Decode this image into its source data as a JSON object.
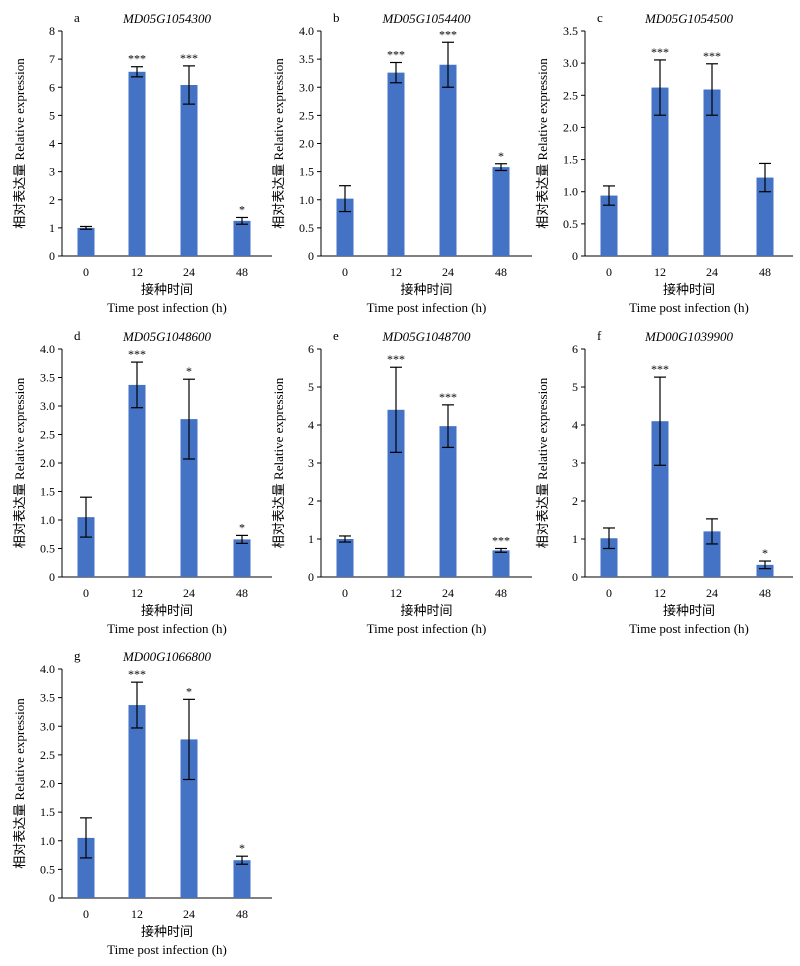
{
  "chart_data": [
    {
      "type": "bar",
      "panel_label": "a",
      "title": "MD05G1054300",
      "categories": [
        "0",
        "12",
        "24",
        "48"
      ],
      "values": [
        1.0,
        6.55,
        6.08,
        1.25
      ],
      "errors": [
        0.05,
        0.18,
        0.68,
        0.12
      ],
      "significance": [
        "",
        "***",
        "***",
        "*"
      ],
      "ylim": [
        0,
        8
      ],
      "yticks": [
        "0",
        "1",
        "2",
        "3",
        "4",
        "5",
        "6",
        "7",
        "8"
      ],
      "ylabel": "相对表达量 Relative expression",
      "xlabel_cn": "接种时间",
      "xlabel": "Time post infection (h)",
      "bar_color": "#4472c4"
    },
    {
      "type": "bar",
      "panel_label": "b",
      "title": "MD05G1054400",
      "categories": [
        "0",
        "12",
        "24",
        "48"
      ],
      "values": [
        1.02,
        3.26,
        3.4,
        1.58
      ],
      "errors": [
        0.23,
        0.18,
        0.4,
        0.06
      ],
      "significance": [
        "",
        "***",
        "***",
        "*"
      ],
      "ylim": [
        0,
        4.0
      ],
      "yticks": [
        "0",
        "0.5",
        "1.0",
        "1.5",
        "2.0",
        "2.5",
        "3.0",
        "3.5",
        "4.0"
      ],
      "ylabel": "相对表达量 Relative expression",
      "xlabel_cn": "接种时间",
      "xlabel": "Time post infection (h)",
      "bar_color": "#4472c4"
    },
    {
      "type": "bar",
      "panel_label": "c",
      "title": "MD05G1054500",
      "categories": [
        "0",
        "12",
        "24",
        "48"
      ],
      "values": [
        0.94,
        2.62,
        2.59,
        1.22
      ],
      "errors": [
        0.15,
        0.43,
        0.4,
        0.22
      ],
      "significance": [
        "",
        "***",
        "***",
        ""
      ],
      "ylim": [
        0,
        3.5
      ],
      "yticks": [
        "0",
        "0.5",
        "1.0",
        "1.5",
        "2.0",
        "2.5",
        "3.0",
        "3.5"
      ],
      "ylabel": "相对表达量 Relative expression",
      "xlabel_cn": "接种时间",
      "xlabel": "Time post infection (h)",
      "bar_color": "#4472c4"
    },
    {
      "type": "bar",
      "panel_label": "d",
      "title": "MD05G1048600",
      "categories": [
        "0",
        "12",
        "24",
        "48"
      ],
      "values": [
        1.05,
        3.37,
        2.77,
        0.66
      ],
      "errors": [
        0.35,
        0.4,
        0.7,
        0.07
      ],
      "significance": [
        "",
        "***",
        "*",
        "*"
      ],
      "ylim": [
        0,
        4.0
      ],
      "yticks": [
        "0",
        "0.5",
        "1.0",
        "1.5",
        "2.0",
        "2.5",
        "3.0",
        "3.5",
        "4.0"
      ],
      "ylabel": "相对表达量 Relative expression",
      "xlabel_cn": "接种时间",
      "xlabel": "Time post infection (h)",
      "bar_color": "#4472c4"
    },
    {
      "type": "bar",
      "panel_label": "e",
      "title": "MD05G1048700",
      "categories": [
        "0",
        "12",
        "24",
        "48"
      ],
      "values": [
        1.0,
        4.4,
        3.97,
        0.7
      ],
      "errors": [
        0.08,
        1.12,
        0.56,
        0.05
      ],
      "significance": [
        "",
        "***",
        "***",
        "***"
      ],
      "ylim": [
        0,
        6
      ],
      "yticks": [
        "0",
        "1",
        "2",
        "3",
        "4",
        "5",
        "6"
      ],
      "ylabel": "相对表达量 Relative expression",
      "xlabel_cn": "接种时间",
      "xlabel": "Time post infection (h)",
      "bar_color": "#4472c4"
    },
    {
      "type": "bar",
      "panel_label": "f",
      "title": "MD00G1039900",
      "categories": [
        "0",
        "12",
        "24",
        "48"
      ],
      "values": [
        1.02,
        4.1,
        1.2,
        0.32
      ],
      "errors": [
        0.27,
        1.16,
        0.33,
        0.1
      ],
      "significance": [
        "",
        "***",
        "",
        "*"
      ],
      "ylim": [
        0,
        6
      ],
      "yticks": [
        "0",
        "1",
        "2",
        "3",
        "4",
        "5",
        "6"
      ],
      "ylabel": "相对表达量 Relative expression",
      "xlabel_cn": "接种时间",
      "xlabel": "Time post infection (h)",
      "bar_color": "#4472c4"
    },
    {
      "type": "bar",
      "panel_label": "g",
      "title": "MD00G1066800",
      "categories": [
        "0",
        "12",
        "24",
        "48"
      ],
      "values": [
        1.05,
        3.37,
        2.77,
        0.66
      ],
      "errors": [
        0.35,
        0.4,
        0.7,
        0.07
      ],
      "significance": [
        "",
        "***",
        "*",
        "*"
      ],
      "ylim": [
        0,
        4.0
      ],
      "yticks": [
        "0",
        "0.5",
        "1.0",
        "1.5",
        "2.0",
        "2.5",
        "3.0",
        "3.5",
        "4.0"
      ],
      "ylabel": "相对表达量 Relative expression",
      "xlabel_cn": "接种时间",
      "xlabel": "Time post infection (h)",
      "bar_color": "#4472c4"
    }
  ]
}
